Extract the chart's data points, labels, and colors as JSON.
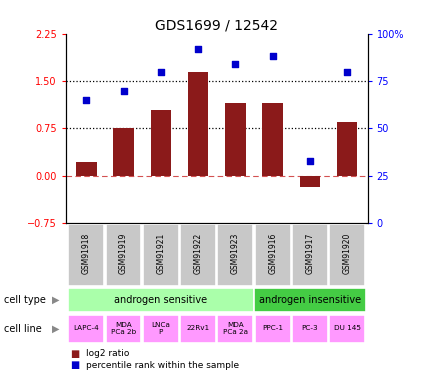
{
  "title": "GDS1699 / 12542",
  "samples": [
    "GSM91918",
    "GSM91919",
    "GSM91921",
    "GSM91922",
    "GSM91923",
    "GSM91916",
    "GSM91917",
    "GSM91920"
  ],
  "log2_ratio": [
    0.22,
    0.76,
    1.05,
    1.65,
    1.15,
    1.15,
    -0.18,
    0.85
  ],
  "percentile_rank": [
    65,
    70,
    80,
    92,
    84,
    88,
    33,
    80
  ],
  "bar_color": "#8B1A1A",
  "dot_color": "#0000CC",
  "ylim_left": [
    -0.75,
    2.25
  ],
  "ylim_right": [
    0,
    100
  ],
  "yticks_left": [
    -0.75,
    0,
    0.75,
    1.5,
    2.25
  ],
  "yticks_right": [
    0,
    25,
    50,
    75,
    100
  ],
  "hline_dotted": [
    0.75,
    1.5
  ],
  "hline_dashed_color": "#CC3333",
  "cell_type_groups": [
    {
      "label": "androgen sensitive",
      "span": [
        0,
        5
      ],
      "color": "#AAFFAA"
    },
    {
      "label": "androgen insensitive",
      "span": [
        5,
        8
      ],
      "color": "#44CC44"
    }
  ],
  "cell_lines": [
    "LAPC-4",
    "MDA\nPCa 2b",
    "LNCa\nP",
    "22Rv1",
    "MDA\nPCa 2a",
    "PPC-1",
    "PC-3",
    "DU 145"
  ],
  "cell_line_color": "#FF99FF",
  "sample_bg_color": "#C8C8C8",
  "legend_bar_label": "log2 ratio",
  "legend_dot_label": "percentile rank within the sample",
  "cell_type_label": "cell type",
  "cell_line_label": "cell line",
  "title_fontsize": 10,
  "tick_fontsize": 7,
  "label_fontsize": 7.5
}
